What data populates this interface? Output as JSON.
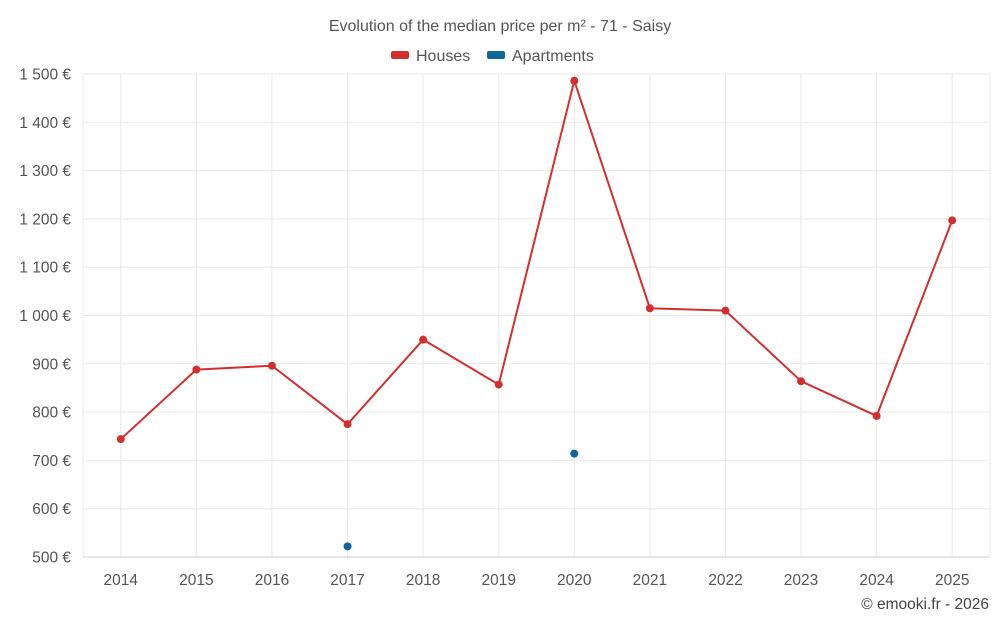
{
  "chart_data": {
    "type": "line",
    "title": "Evolution of the median price per m² - 71 - Saisy",
    "categories": [
      "2014",
      "2015",
      "2016",
      "2017",
      "2018",
      "2019",
      "2020",
      "2021",
      "2022",
      "2023",
      "2024",
      "2025"
    ],
    "series": [
      {
        "name": "Houses",
        "color": "#d32f2f",
        "connected": true,
        "values": [
          744,
          888,
          896,
          775,
          950,
          857,
          1486,
          1015,
          1010,
          864,
          792,
          1197
        ]
      },
      {
        "name": "Apartments",
        "color": "#0d6798",
        "connected": false,
        "values": [
          null,
          null,
          null,
          522,
          null,
          null,
          714,
          null,
          null,
          null,
          null,
          null
        ]
      }
    ],
    "ylim": [
      500,
      1500
    ],
    "yticks": [
      500,
      600,
      700,
      800,
      900,
      1000,
      1100,
      1200,
      1300,
      1400,
      1500
    ],
    "ytick_labels": [
      "500 €",
      "600 €",
      "700 €",
      "800 €",
      "900 €",
      "1 000 €",
      "1 100 €",
      "1 200 €",
      "1 300 €",
      "1 400 €",
      "1 500 €"
    ],
    "legend_position": "top-center",
    "grid": true
  },
  "credit": "© emooki.fr - 2026"
}
